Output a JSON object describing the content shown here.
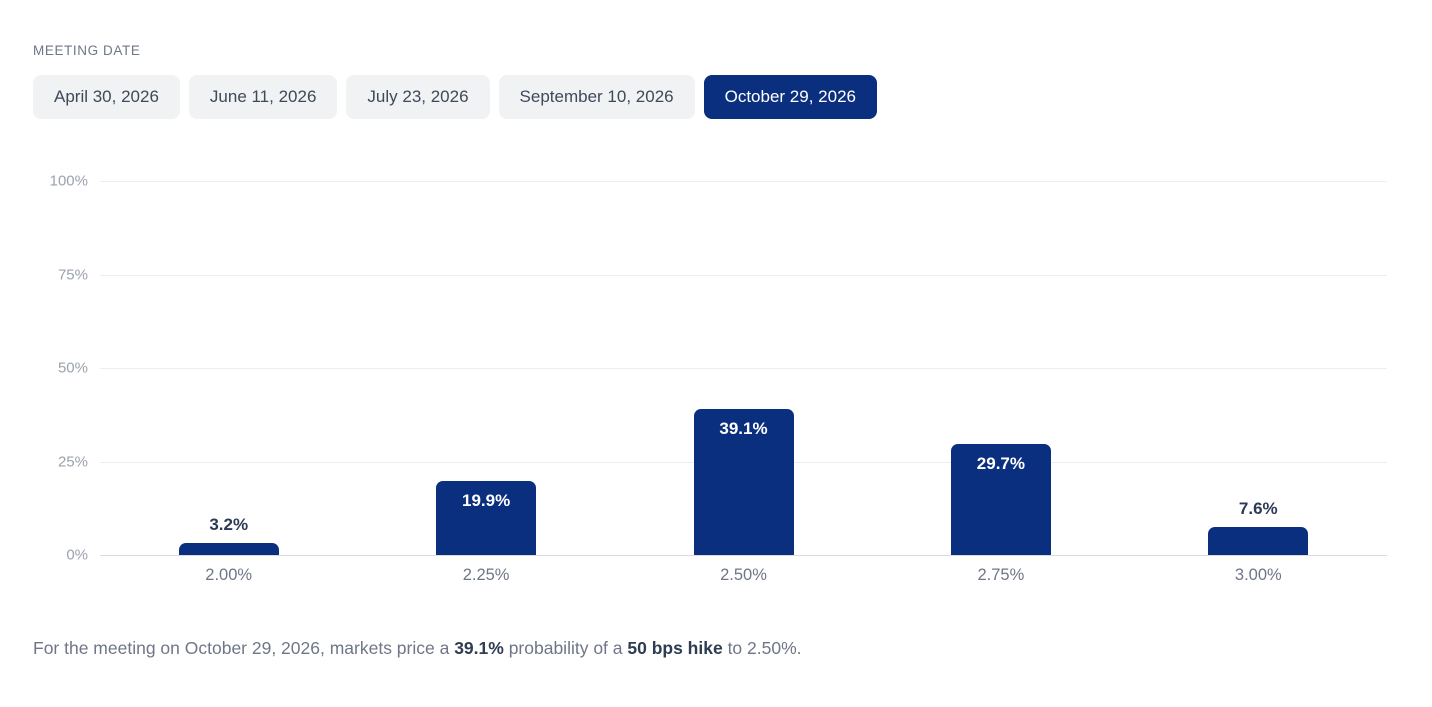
{
  "controls": {
    "label": "MEETING DATE",
    "tabs": [
      {
        "label": "April 30, 2026",
        "selected": false
      },
      {
        "label": "June 11, 2026",
        "selected": false
      },
      {
        "label": "July 23, 2026",
        "selected": false
      },
      {
        "label": "September 10, 2026",
        "selected": false
      },
      {
        "label": "October 29, 2026",
        "selected": true
      }
    ]
  },
  "chart_data": {
    "type": "bar",
    "categories": [
      "2.00%",
      "2.25%",
      "2.50%",
      "2.75%",
      "3.00%"
    ],
    "values": [
      3.2,
      19.9,
      39.1,
      29.7,
      7.6
    ],
    "value_labels": [
      "3.2%",
      "19.9%",
      "39.1%",
      "29.7%",
      "7.6%"
    ],
    "title": "",
    "xlabel": "",
    "ylabel": "",
    "ylim": [
      0,
      100
    ],
    "yticks": [
      0,
      25,
      50,
      75,
      100
    ],
    "ytick_labels": [
      "0%",
      "25%",
      "50%",
      "75%",
      "100%"
    ],
    "grid": true,
    "legend": false,
    "bar_color": "#0b2f7f"
  },
  "caption": {
    "parts": [
      {
        "text": "For the meeting on October 29, 2026, markets price a ",
        "bold": false
      },
      {
        "text": "39.1%",
        "bold": true
      },
      {
        "text": " probability of a ",
        "bold": false
      },
      {
        "text": "50 bps hike",
        "bold": true
      },
      {
        "text": " to 2.50%.",
        "bold": false
      }
    ]
  },
  "colors": {
    "bar": "#0b2f7f",
    "tab_active_bg": "#0b2f7f",
    "tab_active_text": "#ffffff",
    "tab_inactive_bg": "#f1f2f4",
    "tab_inactive_text": "#3e4959",
    "gridline": "#eceef1",
    "zero_axis": "#d9dce1"
  }
}
